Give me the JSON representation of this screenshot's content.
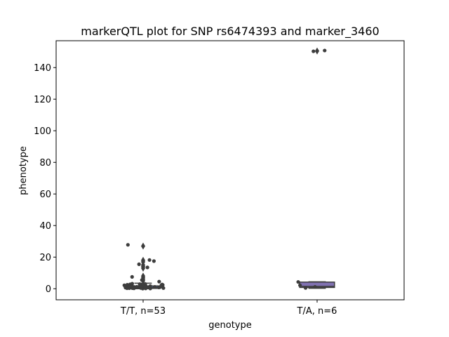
{
  "chart_data": {
    "type": "box",
    "title": "markerQTL plot for SNP rs6474393 and marker_3460",
    "xlabel": "genotype",
    "ylabel": "phenotype",
    "ylim": [
      -7,
      157
    ],
    "yticks": [
      0,
      20,
      40,
      60,
      80,
      100,
      120,
      140
    ],
    "categories": [
      "T/T, n=53",
      "T/A, n=6"
    ],
    "boxes": [
      {
        "category": "T/T, n=53",
        "color": "#4c72b0",
        "q1": 0.2,
        "median": 0.7,
        "q3": 1.8,
        "whisker_low": 0,
        "whisker_high": 3.5,
        "outliers": [
          5,
          6,
          7,
          8,
          13,
          14,
          15,
          17,
          18,
          27
        ]
      },
      {
        "category": "T/A, n=6",
        "color": "#8172b2",
        "q1": 0.8,
        "median": 1.5,
        "q3": 4.2,
        "whisker_low": 0.3,
        "whisker_high": 4.4,
        "outliers": [
          150.5
        ]
      }
    ],
    "points": [
      {
        "category": "T/T, n=53",
        "color": "#3d3d3d",
        "values": [
          0.1,
          0.2,
          0.3,
          0.4,
          0.5,
          0.6,
          0.7,
          0.8,
          0.9,
          1.0,
          1.1,
          1.2,
          1.3,
          1.4,
          1.5,
          1.6,
          1.7,
          1.8,
          1.9,
          2.0,
          2.1,
          2.2,
          2.3,
          2.4,
          2.5,
          2.6,
          2.7,
          2.8,
          2.9,
          3.0,
          0.15,
          0.25,
          0.35,
          0.45,
          0.55,
          0.65,
          0.75,
          0.85,
          0.95,
          1.05,
          1.15,
          1.25,
          1.35,
          1.45,
          3.2,
          4.5,
          5.5,
          7.5,
          13.5,
          15.5,
          17.5,
          18.2,
          27.8
        ]
      },
      {
        "category": "T/A, n=6",
        "color": "#3d3d3d",
        "values": [
          0.5,
          1.2,
          2.2,
          4.3,
          150.3,
          150.8
        ]
      }
    ]
  }
}
